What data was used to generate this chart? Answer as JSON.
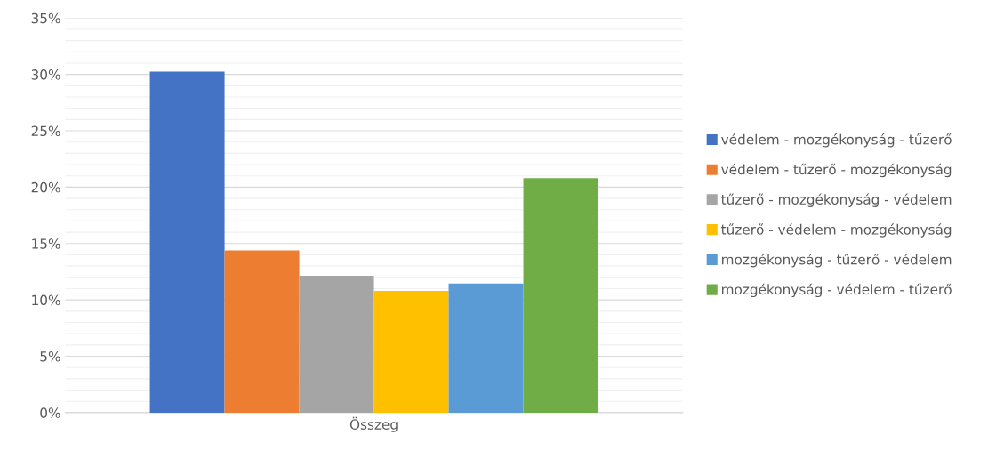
{
  "chart_data": {
    "type": "bar",
    "categories": [
      "Összeg"
    ],
    "series": [
      {
        "name": "védelem - mozgékonyság - tűzerő",
        "color": "#4472c4",
        "values": [
          30.25
        ]
      },
      {
        "name": "védelem - tűzerő - mozgékonyság",
        "color": "#ed7d31",
        "values": [
          14.4
        ]
      },
      {
        "name": "tűzerő - mozgékonyság - védelem",
        "color": "#a5a5a5",
        "values": [
          12.15
        ]
      },
      {
        "name": "tűzerő - védelem - mozgékonyság",
        "color": "#ffc000",
        "values": [
          10.8
        ]
      },
      {
        "name": "mozgékonyság - tűzerő - védelem",
        "color": "#5b9bd5",
        "values": [
          11.45
        ]
      },
      {
        "name": "mozgékonyság - védelem - tűzerő",
        "color": "#70ad47",
        "values": [
          20.8
        ]
      }
    ],
    "ylim": [
      0,
      35
    ],
    "yticks": [
      {
        "value": 0,
        "label": "0%"
      },
      {
        "value": 5,
        "label": "5%"
      },
      {
        "value": 10,
        "label": "10%"
      },
      {
        "value": 15,
        "label": "15%"
      },
      {
        "value": 20,
        "label": "20%"
      },
      {
        "value": 25,
        "label": "25%"
      },
      {
        "value": 30,
        "label": "30%"
      },
      {
        "value": 35,
        "label": "35%"
      }
    ],
    "grid": "y",
    "legend": "right"
  }
}
